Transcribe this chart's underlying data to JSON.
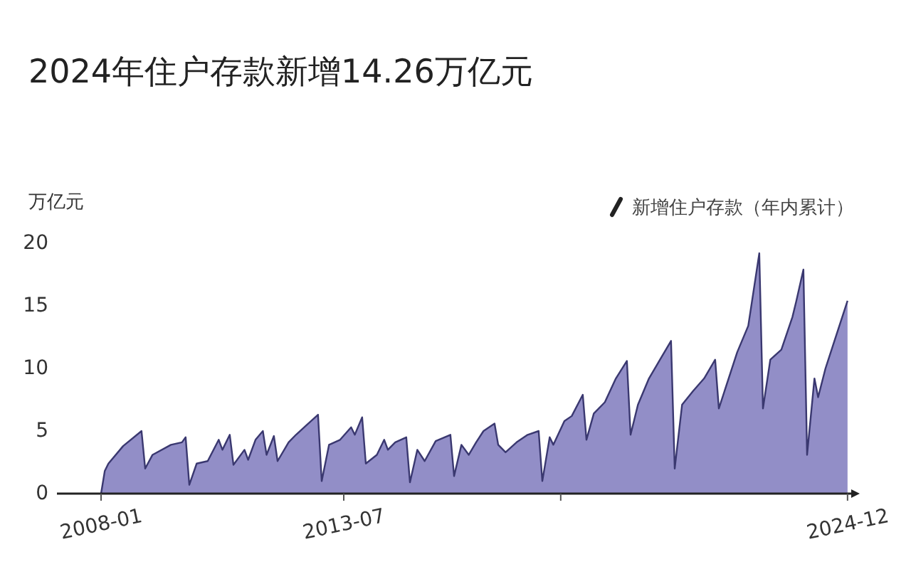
{
  "chart_data": {
    "type": "area",
    "title": "2024年住户存款新增14.26万亿元",
    "ylabel": "万亿元",
    "legend": "top right",
    "grid": false,
    "x": [
      "2008-01",
      "2008-02",
      "2008-03",
      "2008-07",
      "2008-12",
      "2009-01",
      "2009-03",
      "2009-08",
      "2009-11",
      "2009-12",
      "2010-01",
      "2010-03",
      "2010-06",
      "2010-09",
      "2010-10",
      "2010-12",
      "2011-01",
      "2011-04",
      "2011-05",
      "2011-07",
      "2011-09",
      "2011-10",
      "2011-12",
      "2012-01",
      "2012-04",
      "2012-06",
      "2012-09",
      "2012-12",
      "2013-01",
      "2013-03",
      "2013-06",
      "2013-09",
      "2013-10",
      "2013-12",
      "2014-01",
      "2014-04",
      "2014-06",
      "2014-07",
      "2014-09",
      "2014-12",
      "2015-01",
      "2015-03",
      "2015-05",
      "2015-08",
      "2015-12",
      "2016-01",
      "2016-03",
      "2016-05",
      "2016-07",
      "2016-09",
      "2016-12",
      "2017-01",
      "2017-03",
      "2017-06",
      "2017-09",
      "2017-12",
      "2018-01",
      "2018-03",
      "2018-04",
      "2018-07",
      "2018-09",
      "2018-12",
      "2019-01",
      "2019-03",
      "2019-06",
      "2019-09",
      "2019-12",
      "2020-01",
      "2020-03",
      "2020-06",
      "2020-09",
      "2020-12",
      "2021-01",
      "2021-03",
      "2021-06",
      "2021-09",
      "2021-12",
      "2022-01",
      "2022-03",
      "2022-06",
      "2022-09",
      "2022-12",
      "2023-01",
      "2023-03",
      "2023-06",
      "2023-09",
      "2023-10",
      "2023-12",
      "2024-01",
      "2024-03",
      "2024-04",
      "2024-06",
      "2024-09",
      "2024-12"
    ],
    "series": [
      {
        "name": "新增住户存款（年内累计）",
        "color": "#8c88c4",
        "values": [
          0,
          1.8,
          2.4,
          3.8,
          5.0,
          2.0,
          3.1,
          3.9,
          4.1,
          4.5,
          0.7,
          2.4,
          2.6,
          4.3,
          3.5,
          4.7,
          2.3,
          3.5,
          2.7,
          4.3,
          5.0,
          3.1,
          4.6,
          2.6,
          4.1,
          4.7,
          5.5,
          6.3,
          1.0,
          3.9,
          4.3,
          5.3,
          4.7,
          6.1,
          2.4,
          3.1,
          4.3,
          3.5,
          4.1,
          4.5,
          0.9,
          3.5,
          2.6,
          4.2,
          4.7,
          1.4,
          3.9,
          3.1,
          4.1,
          5.0,
          5.6,
          3.9,
          3.3,
          4.1,
          4.7,
          5.0,
          1.0,
          4.5,
          3.9,
          5.8,
          6.2,
          7.9,
          4.3,
          6.4,
          7.3,
          9.2,
          10.6,
          4.7,
          7.1,
          9.2,
          10.7,
          12.2,
          2.0,
          7.1,
          8.2,
          9.2,
          10.7,
          6.8,
          8.6,
          11.3,
          13.4,
          19.2,
          6.8,
          10.7,
          11.5,
          14.1,
          15.3,
          17.9,
          3.1,
          9.2,
          7.7,
          10.0,
          12.7,
          15.4
        ]
      }
    ],
    "xlim": [
      "2007-01",
      "2025-01"
    ],
    "xticks": [
      {
        "value": "2008-01",
        "label": "2008-01"
      },
      {
        "value": "2013-07",
        "label": "2013-07"
      },
      {
        "value": "2018-06",
        "label": null
      },
      {
        "value": "2024-12",
        "label": "2024-12"
      }
    ],
    "ylim": [
      0,
      20
    ],
    "yticks": [
      0,
      5,
      10,
      15,
      20
    ]
  }
}
